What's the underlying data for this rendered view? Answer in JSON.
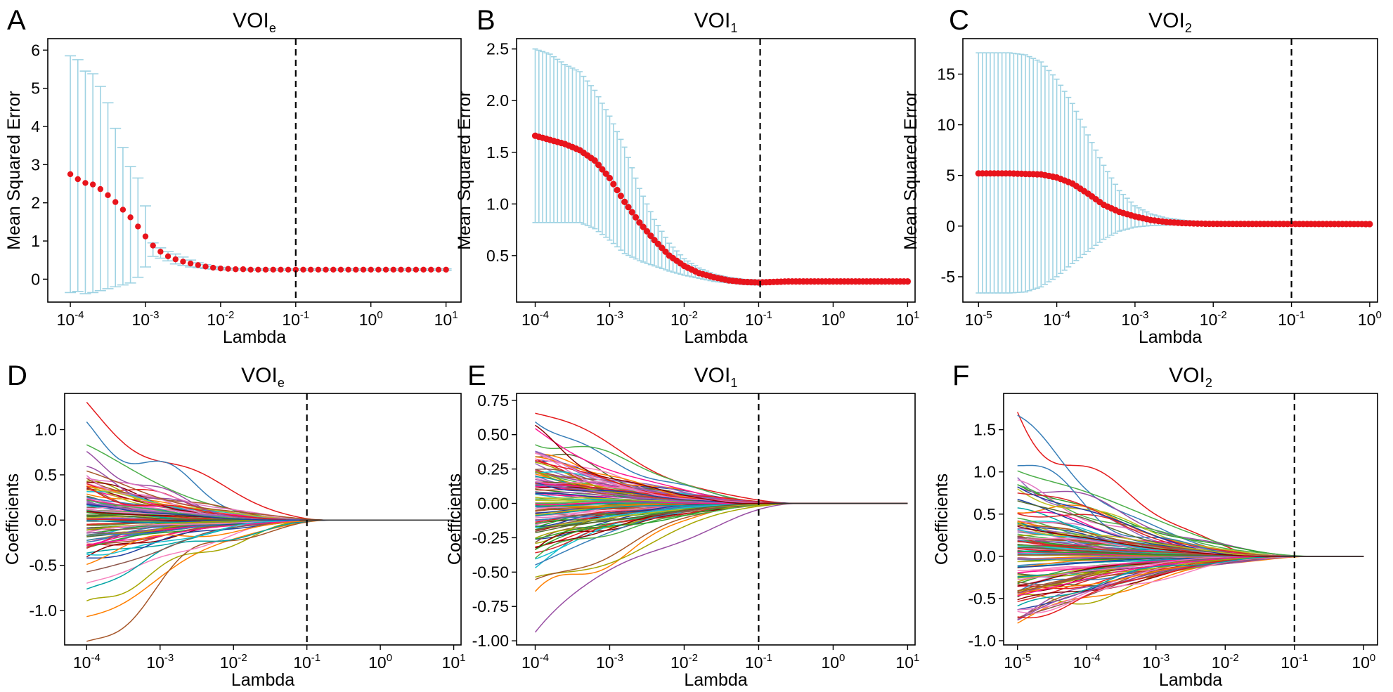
{
  "figure": {
    "panels": [
      {
        "letter": "A",
        "title_main": "VOI",
        "title_sub": "e"
      },
      {
        "letter": "B",
        "title_main": "VOI",
        "title_sub": "1"
      },
      {
        "letter": "C",
        "title_main": "VOI",
        "title_sub": "2"
      },
      {
        "letter": "D",
        "title_main": "VOI",
        "title_sub": "e"
      },
      {
        "letter": "E",
        "title_main": "VOI",
        "title_sub": "1"
      },
      {
        "letter": "F",
        "title_main": "VOI",
        "title_sub": "2"
      }
    ]
  },
  "colors": {
    "mse_point": "#e8141c",
    "error_bar": "#9fd3e3",
    "cutoff_line": "#000000",
    "axis": "#000000",
    "palette": [
      "#e41a1c",
      "#377eb8",
      "#4daf4a",
      "#984ea3",
      "#ff7f00",
      "#a6a600",
      "#a65628",
      "#f781bf",
      "#17becf",
      "#1f3fa0",
      "#2ca02c",
      "#d62728",
      "#8c564b",
      "#e377c2",
      "#bcbd22",
      "#9467bd",
      "#00a3a3",
      "#ff1493",
      "#556b2f",
      "#8b0000"
    ]
  },
  "chart_data": [
    {
      "id": "A",
      "type": "scatter",
      "subtype": "cv-error-bars",
      "title": "VOIe",
      "xlabel": "Lambda",
      "ylabel": "Mean Squared Error",
      "x_scale": "log10",
      "x_range_log10": [
        -4.3,
        1.2
      ],
      "ylim": [
        -0.6,
        6.3
      ],
      "x_ticks": [
        {
          "base": "10",
          "exp": "-4"
        },
        {
          "base": "10",
          "exp": "-3"
        },
        {
          "base": "10",
          "exp": "-2"
        },
        {
          "base": "10",
          "exp": "-1"
        },
        {
          "base": "10",
          "exp": "0"
        },
        {
          "base": "10",
          "exp": "1"
        }
      ],
      "y_ticks": [
        "0",
        "1",
        "2",
        "3",
        "4",
        "5",
        "6"
      ],
      "cutoff_log10": -1.0,
      "lambda_log10_start": -4,
      "lambda_log10_step": 0.1,
      "mse": [
        2.75,
        2.62,
        2.52,
        2.48,
        2.36,
        2.2,
        2.02,
        1.82,
        1.62,
        1.38,
        1.12,
        0.88,
        0.72,
        0.6,
        0.52,
        0.46,
        0.41,
        0.37,
        0.33,
        0.3,
        0.28,
        0.27,
        0.26,
        0.26,
        0.25,
        0.25,
        0.25,
        0.25,
        0.25,
        0.25,
        0.25,
        0.25,
        0.25,
        0.25,
        0.25,
        0.25,
        0.25,
        0.25,
        0.25,
        0.25,
        0.25,
        0.25,
        0.25,
        0.25,
        0.25,
        0.25,
        0.25,
        0.25,
        0.25,
        0.25,
        0.25
      ],
      "upper": [
        5.85,
        5.75,
        5.45,
        5.38,
        5.05,
        4.62,
        3.95,
        3.45,
        2.95,
        2.65,
        1.92,
        0.95,
        0.82,
        0.72,
        0.66,
        0.58,
        0.5,
        0.43,
        0.38,
        0.33,
        0.31,
        0.29,
        0.28,
        0.28,
        0.27,
        0.27,
        0.27,
        0.27,
        0.27,
        0.27,
        0.27,
        0.27,
        0.27,
        0.27,
        0.27,
        0.27,
        0.27,
        0.27,
        0.27,
        0.27,
        0.27,
        0.27,
        0.27,
        0.27,
        0.27,
        0.27,
        0.27,
        0.27,
        0.27,
        0.27,
        0.27
      ],
      "lower": [
        -0.35,
        -0.32,
        -0.38,
        -0.35,
        -0.3,
        -0.25,
        -0.2,
        -0.15,
        -0.1,
        0.05,
        0.32,
        0.6,
        0.55,
        0.48,
        0.4,
        0.36,
        0.32,
        0.3,
        0.28,
        0.26,
        0.25,
        0.24,
        0.24,
        0.24,
        0.23,
        0.23,
        0.23,
        0.23,
        0.23,
        0.23,
        0.23,
        0.23,
        0.23,
        0.23,
        0.23,
        0.23,
        0.23,
        0.23,
        0.23,
        0.23,
        0.23,
        0.23,
        0.23,
        0.23,
        0.23,
        0.23,
        0.23,
        0.23,
        0.23,
        0.23,
        0.23
      ]
    },
    {
      "id": "B",
      "type": "scatter",
      "subtype": "cv-error-bars",
      "title": "VOI1",
      "xlabel": "Lambda",
      "ylabel": "Mean Squared Error",
      "x_scale": "log10",
      "x_range_log10": [
        -4.25,
        1.1
      ],
      "ylim": [
        0.05,
        2.6
      ],
      "x_ticks": [
        {
          "base": "10",
          "exp": "-4"
        },
        {
          "base": "10",
          "exp": "-3"
        },
        {
          "base": "10",
          "exp": "-2"
        },
        {
          "base": "10",
          "exp": "-1"
        },
        {
          "base": "10",
          "exp": "0"
        },
        {
          "base": "10",
          "exp": "1"
        }
      ],
      "y_ticks": [
        "0.5",
        "1.0",
        "1.5",
        "2.0",
        "2.5"
      ],
      "cutoff_log10": -0.98,
      "lambda_log10_start": -4,
      "lambda_log10_step": 0.05,
      "curve_keys": [
        [
          -4.0,
          1.66
        ],
        [
          -3.8,
          1.62
        ],
        [
          -3.6,
          1.58
        ],
        [
          -3.4,
          1.52
        ],
        [
          -3.2,
          1.42
        ],
        [
          -3.0,
          1.25
        ],
        [
          -2.8,
          1.02
        ],
        [
          -2.6,
          0.82
        ],
        [
          -2.4,
          0.65
        ],
        [
          -2.2,
          0.5
        ],
        [
          -2.0,
          0.4
        ],
        [
          -1.8,
          0.33
        ],
        [
          -1.6,
          0.29
        ],
        [
          -1.4,
          0.26
        ],
        [
          -1.2,
          0.245
        ],
        [
          -1.0,
          0.24
        ],
        [
          -0.8,
          0.245
        ],
        [
          -0.6,
          0.25
        ],
        [
          1.0,
          0.25
        ]
      ],
      "upper_keys": [
        [
          -4.0,
          2.5
        ],
        [
          -3.8,
          2.45
        ],
        [
          -3.6,
          2.35
        ],
        [
          -3.4,
          2.28
        ],
        [
          -3.2,
          2.1
        ],
        [
          -3.0,
          1.85
        ],
        [
          -2.8,
          1.55
        ],
        [
          -2.6,
          1.15
        ],
        [
          -2.4,
          0.85
        ],
        [
          -2.2,
          0.62
        ],
        [
          -2.0,
          0.47
        ],
        [
          -1.8,
          0.38
        ],
        [
          -1.6,
          0.32
        ],
        [
          -1.4,
          0.29
        ],
        [
          -1.2,
          0.27
        ],
        [
          -1.0,
          0.265
        ],
        [
          -0.8,
          0.265
        ],
        [
          -0.6,
          0.27
        ],
        [
          1.0,
          0.27
        ]
      ],
      "lower_keys": [
        [
          -4.0,
          0.82
        ],
        [
          -3.6,
          0.82
        ],
        [
          -3.4,
          0.82
        ],
        [
          -3.2,
          0.76
        ],
        [
          -3.0,
          0.65
        ],
        [
          -2.8,
          0.52
        ],
        [
          -2.6,
          0.45
        ],
        [
          -2.4,
          0.4
        ],
        [
          -2.2,
          0.35
        ],
        [
          -2.0,
          0.31
        ],
        [
          -1.8,
          0.28
        ],
        [
          -1.6,
          0.25
        ],
        [
          -1.4,
          0.235
        ],
        [
          -1.2,
          0.22
        ],
        [
          -1.0,
          0.215
        ],
        [
          -0.8,
          0.225
        ],
        [
          -0.6,
          0.23
        ],
        [
          1.0,
          0.23
        ]
      ]
    },
    {
      "id": "C",
      "type": "scatter",
      "subtype": "cv-error-bars",
      "title": "VOI2",
      "xlabel": "Lambda",
      "ylabel": "Mean Squared Error",
      "x_scale": "log10",
      "x_range_log10": [
        -5.2,
        0.1
      ],
      "ylim": [
        -7.5,
        18.5
      ],
      "x_ticks": [
        {
          "base": "10",
          "exp": "-5"
        },
        {
          "base": "10",
          "exp": "-4"
        },
        {
          "base": "10",
          "exp": "-3"
        },
        {
          "base": "10",
          "exp": "-2"
        },
        {
          "base": "10",
          "exp": "-1"
        },
        {
          "base": "10",
          "exp": "0"
        }
      ],
      "y_ticks": [
        "-5",
        "0",
        "5",
        "10",
        "15"
      ],
      "cutoff_log10": -1.0,
      "lambda_log10_start": -5,
      "lambda_log10_step": 0.05,
      "curve_keys": [
        [
          -5.0,
          5.2
        ],
        [
          -4.6,
          5.2
        ],
        [
          -4.2,
          5.1
        ],
        [
          -4.0,
          4.8
        ],
        [
          -3.8,
          4.2
        ],
        [
          -3.6,
          3.2
        ],
        [
          -3.4,
          2.1
        ],
        [
          -3.2,
          1.4
        ],
        [
          -3.0,
          0.95
        ],
        [
          -2.8,
          0.6
        ],
        [
          -2.6,
          0.4
        ],
        [
          -2.4,
          0.3
        ],
        [
          -2.2,
          0.25
        ],
        [
          -2.0,
          0.22
        ],
        [
          0.0,
          0.2
        ]
      ],
      "upper_keys": [
        [
          -5.0,
          17.1
        ],
        [
          -4.6,
          17.1
        ],
        [
          -4.4,
          16.9
        ],
        [
          -4.2,
          16.2
        ],
        [
          -4.0,
          14.5
        ],
        [
          -3.8,
          12.1
        ],
        [
          -3.6,
          9.0
        ],
        [
          -3.4,
          6.0
        ],
        [
          -3.2,
          3.5
        ],
        [
          -3.0,
          2.0
        ],
        [
          -2.8,
          1.2
        ],
        [
          -2.6,
          0.8
        ],
        [
          -2.4,
          0.6
        ],
        [
          -2.2,
          0.45
        ],
        [
          -2.0,
          0.35
        ],
        [
          -1.6,
          0.28
        ],
        [
          0.0,
          0.26
        ]
      ],
      "lower_keys": [
        [
          -5.0,
          -6.6
        ],
        [
          -4.6,
          -6.6
        ],
        [
          -4.4,
          -6.5
        ],
        [
          -4.2,
          -6.0
        ],
        [
          -4.0,
          -5.0
        ],
        [
          -3.8,
          -3.7
        ],
        [
          -3.6,
          -2.5
        ],
        [
          -3.4,
          -1.3
        ],
        [
          -3.2,
          -0.5
        ],
        [
          -3.0,
          -0.1
        ],
        [
          -2.8,
          0.05
        ],
        [
          -2.6,
          0.1
        ],
        [
          -2.4,
          0.12
        ],
        [
          -2.0,
          0.13
        ],
        [
          0.0,
          0.14
        ]
      ]
    },
    {
      "id": "D",
      "type": "line",
      "subtype": "coefficient-paths",
      "title": "VOIe",
      "xlabel": "Lambda",
      "ylabel": "Coefficients",
      "x_scale": "log10",
      "x_range_log10": [
        -4.3,
        1.1
      ],
      "ylim": [
        -1.38,
        1.4
      ],
      "x_ticks": [
        {
          "base": "10",
          "exp": "-4"
        },
        {
          "base": "10",
          "exp": "-3"
        },
        {
          "base": "10",
          "exp": "-2"
        },
        {
          "base": "10",
          "exp": "-1"
        },
        {
          "base": "10",
          "exp": "0"
        },
        {
          "base": "10",
          "exp": "1"
        }
      ],
      "y_ticks": [
        "-1.0",
        "-0.5",
        "0.0",
        "0.5",
        "1.0"
      ],
      "cutoff_log10": -1.0,
      "x_start_log10": -4.0,
      "x_end_log10": 1.0,
      "zero_at_log10": -1.1,
      "n_paths": 110,
      "seed": 11,
      "start_extremes": [
        1.32,
        1.15,
        0.78,
        0.72,
        -1.05,
        -1.08,
        -1.22,
        -0.82
      ]
    },
    {
      "id": "E",
      "type": "line",
      "subtype": "coefficient-paths",
      "title": "VOI1",
      "xlabel": "Lambda",
      "ylabel": "Coefficients",
      "x_scale": "log10",
      "x_range_log10": [
        -4.25,
        1.1
      ],
      "ylim": [
        -1.03,
        0.8
      ],
      "x_ticks": [
        {
          "base": "10",
          "exp": "-4"
        },
        {
          "base": "10",
          "exp": "-3"
        },
        {
          "base": "10",
          "exp": "-2"
        },
        {
          "base": "10",
          "exp": "-1"
        },
        {
          "base": "10",
          "exp": "0"
        },
        {
          "base": "10",
          "exp": "1"
        }
      ],
      "y_ticks": [
        "-1.00",
        "-0.75",
        "-0.50",
        "-0.25",
        "0.00",
        "0.25",
        "0.50",
        "0.75"
      ],
      "cutoff_log10": -1.0,
      "x_start_log10": -4.0,
      "x_end_log10": 1.0,
      "zero_at_log10": -0.85,
      "n_paths": 120,
      "seed": 23,
      "start_extremes": [
        0.66,
        0.62,
        0.58,
        -0.95,
        -0.75,
        -0.65,
        -0.6
      ]
    },
    {
      "id": "F",
      "type": "line",
      "subtype": "coefficient-paths",
      "title": "VOI2",
      "xlabel": "Lambda",
      "ylabel": "Coefficients",
      "x_scale": "log10",
      "x_range_log10": [
        -5.2,
        0.2
      ],
      "ylim": [
        -1.05,
        1.93
      ],
      "x_ticks": [
        {
          "base": "10",
          "exp": "-5"
        },
        {
          "base": "10",
          "exp": "-4"
        },
        {
          "base": "10",
          "exp": "-3"
        },
        {
          "base": "10",
          "exp": "-2"
        },
        {
          "base": "10",
          "exp": "-1"
        },
        {
          "base": "10",
          "exp": "0"
        }
      ],
      "y_ticks": [
        "-1.0",
        "-0.5",
        "0.0",
        "0.5",
        "1.0",
        "1.5"
      ],
      "cutoff_log10": -1.0,
      "x_start_log10": -5.0,
      "x_end_log10": 0.0,
      "zero_at_log10": -1.2,
      "n_paths": 120,
      "seed": 37,
      "start_extremes": [
        1.82,
        1.48,
        1.15,
        0.98,
        -0.75,
        -0.7,
        -0.68
      ]
    }
  ]
}
